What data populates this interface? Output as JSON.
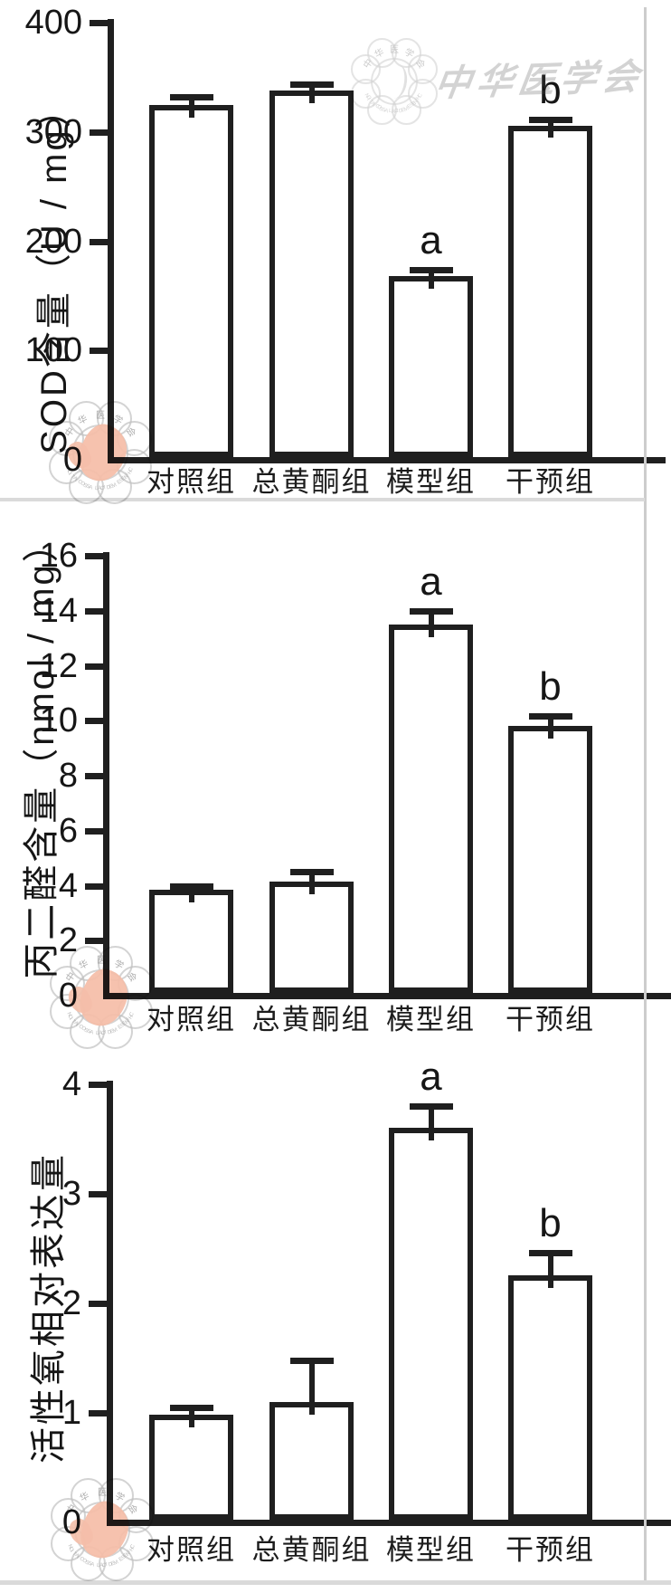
{
  "figure": {
    "background": "#ffffff",
    "axis_color": "#1f1f1f",
    "bar_fill": "#ffffff",
    "panel_edge_color": "#cdcdcd"
  },
  "watermarks": {
    "calligraphy_text": "中华医学会",
    "seal_arc_top_text": "中华医学会",
    "seal_arc_bottom_text": "CHINESE MEDICAL ASSOCIATION",
    "seal_accent_color": "#f2ae93",
    "seal_outline_color": "#b5b5b5"
  },
  "chart_data": [
    {
      "type": "bar",
      "title": "",
      "ylabel": "SOD含量（U / mg）",
      "xlabel": "",
      "ylim": [
        0,
        400
      ],
      "ytick_step": 100,
      "grid": false,
      "legend": "none",
      "categories": [
        "对照组",
        "总黄酮组",
        "模型组",
        "干预组"
      ],
      "values": [
        325,
        338,
        168,
        306
      ],
      "errors_upper": [
        7,
        6,
        6,
        5
      ],
      "sig_labels": [
        "",
        "",
        "a",
        "b"
      ]
    },
    {
      "type": "bar",
      "title": "",
      "ylabel": "丙二醛含量（nmol / mg）",
      "xlabel": "",
      "ylim": [
        0,
        16
      ],
      "ytick_step": 2,
      "grid": false,
      "legend": "none",
      "categories": [
        "对照组",
        "总黄酮组",
        "模型组",
        "干预组"
      ],
      "values": [
        3.85,
        4.15,
        13.5,
        9.8
      ],
      "errors_upper": [
        0.12,
        0.35,
        0.5,
        0.38
      ],
      "sig_labels": [
        "",
        "",
        "a",
        "b"
      ]
    },
    {
      "type": "bar",
      "title": "",
      "ylabel": "活性氧相对表达量",
      "xlabel": "",
      "ylim": [
        0,
        4
      ],
      "ytick_step": 1,
      "grid": false,
      "legend": "none",
      "categories": [
        "对照组",
        "总黄酮组",
        "模型组",
        "干预组"
      ],
      "values": [
        0.98,
        1.1,
        3.6,
        2.26
      ],
      "errors_upper": [
        0.07,
        0.38,
        0.2,
        0.2
      ],
      "sig_labels": [
        "",
        "",
        "a",
        "b"
      ]
    }
  ]
}
